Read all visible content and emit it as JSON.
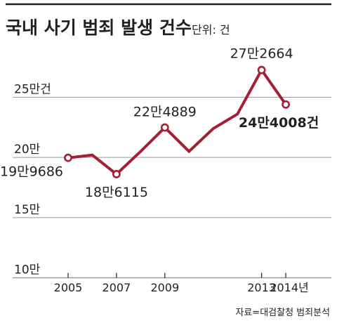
{
  "chart_data": {
    "type": "line",
    "title": "국내 사기 범죄 발생 건수",
    "unit_label": "단위: 건",
    "x": [
      "2005",
      "2006",
      "2007",
      "2008",
      "2009",
      "2010",
      "2011",
      "2012",
      "2013",
      "2014"
    ],
    "x_tick_labels": [
      "2005",
      "",
      "2007",
      "",
      "2009",
      "",
      "",
      "",
      "2013",
      "2014년"
    ],
    "series": [
      {
        "values": [
          199686,
          202000,
          186115,
          205000,
          224889,
          205000,
          224000,
          236000,
          272664,
          244008
        ]
      }
    ],
    "y_ticks": [
      {
        "value": 100000,
        "label": "10만"
      },
      {
        "value": 150000,
        "label": "15만"
      },
      {
        "value": 200000,
        "label": "20만"
      },
      {
        "value": 250000,
        "label": "25만건"
      }
    ],
    "ylim": [
      100000,
      290000
    ],
    "grid": true,
    "data_labels": [
      {
        "index": 0,
        "text": "19만9686",
        "bold": false
      },
      {
        "index": 2,
        "text": "18만6115",
        "bold": false
      },
      {
        "index": 4,
        "text": "22만4889",
        "bold": false
      },
      {
        "index": 8,
        "text": "27만2664",
        "bold": false
      },
      {
        "index": 9,
        "text": "24만4008건",
        "bold": true
      }
    ],
    "colors": {
      "line": "#a31f36",
      "grid": "#9a9a9a",
      "title_bar": "#231f20",
      "text": "#231f20"
    }
  },
  "source": "자료=대검찰청 범죄분석"
}
